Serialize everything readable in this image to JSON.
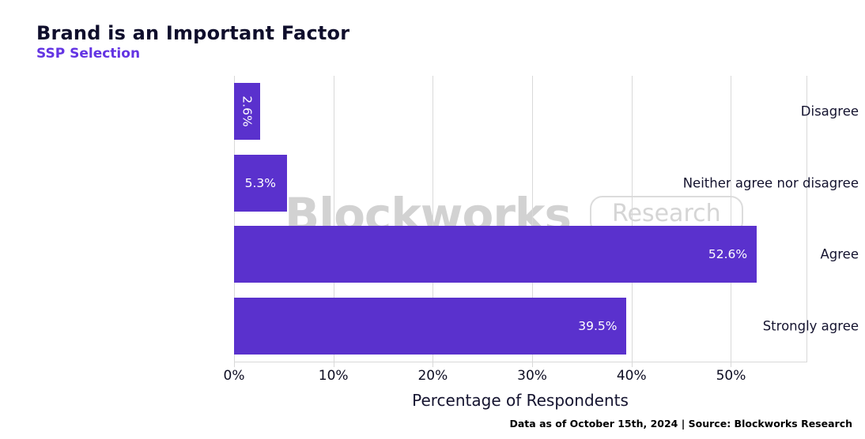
{
  "header": {
    "title": "Brand is an Important Factor",
    "subtitle": "SSP Selection"
  },
  "chart_data": {
    "type": "bar",
    "orientation": "horizontal",
    "title": "Brand is an Important Factor",
    "subtitle": "SSP Selection",
    "categories": [
      "Disagree",
      "Neither agree nor disagree",
      "Agree",
      "Strongly agree"
    ],
    "values": [
      2.6,
      5.3,
      52.6,
      39.5
    ],
    "value_labels": [
      "2.6%",
      "5.3%",
      "52.6%",
      "39.5%"
    ],
    "xlabel": "Percentage of Respondents",
    "ylabel": "",
    "x_ticks": [
      0,
      10,
      20,
      30,
      40,
      50
    ],
    "x_tick_labels": [
      "0%",
      "10%",
      "20%",
      "30%",
      "40%",
      "50%"
    ],
    "xlim": [
      0,
      57.6
    ],
    "grid": "vertical",
    "legend": "none",
    "bar_color": "#5a31cd",
    "value_label_color": "#ffffff"
  },
  "watermark": {
    "brand": "Blockworks",
    "tag": "Research"
  },
  "footer": {
    "note": "Data as of October 15th, 2024 | Source: Blockworks Research"
  },
  "colors": {
    "accent_purple": "#5a31cd",
    "subtitle_purple": "#6334e3",
    "title_dark": "#0f0e2c",
    "grid_gray": "#d9d9d9",
    "watermark_gray": "#d2d2d2",
    "background": "#ffffff"
  }
}
